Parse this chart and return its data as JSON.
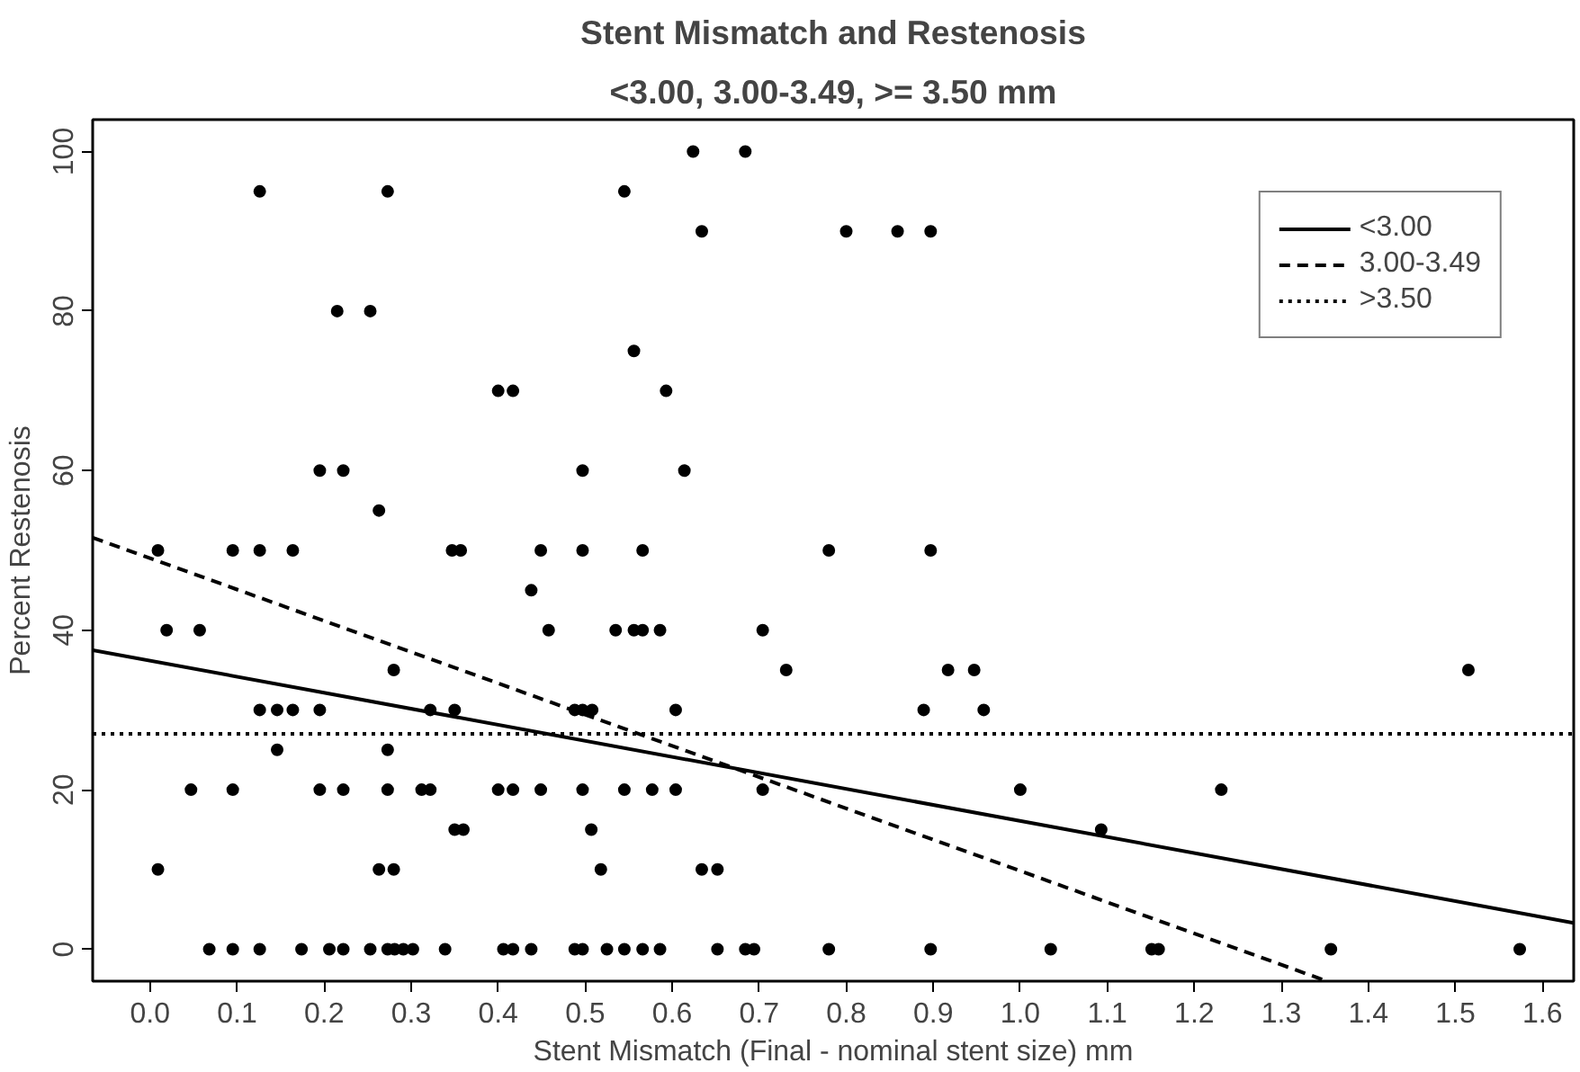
{
  "chart_data": {
    "type": "scatter",
    "title": "Stent Mismatch and Restenosis",
    "subtitle": "<3.00, 3.00-3.49, >= 3.50 mm",
    "xlabel": "Stent Mismatch (Final - nominal stent size) mm",
    "ylabel": "Percent Restenosis",
    "xlim": [
      -0.066,
      1.636
    ],
    "ylim": [
      -4,
      104
    ],
    "xticks": [
      {
        "value": 0,
        "label": "0.0"
      },
      {
        "value": 0.1,
        "label": "0.1"
      },
      {
        "value": 0.2,
        "label": "0.2"
      },
      {
        "value": 0.3,
        "label": "0.3"
      },
      {
        "value": 0.4,
        "label": "0.4"
      },
      {
        "value": 0.5,
        "label": "0.5"
      },
      {
        "value": 0.6,
        "label": "0.6"
      },
      {
        "value": 0.7,
        "label": "0.7"
      },
      {
        "value": 0.8,
        "label": "0.8"
      },
      {
        "value": 0.9,
        "label": "0.9"
      },
      {
        "value": 1,
        "label": "1.0"
      },
      {
        "value": 1.1,
        "label": "1.1"
      },
      {
        "value": 1.2,
        "label": "1.2"
      },
      {
        "value": 1.3,
        "label": "1.3"
      },
      {
        "value": 1.4,
        "label": "1.4"
      },
      {
        "value": 1.5,
        "label": "1.5"
      },
      {
        "value": 1.6,
        "label": "1.6"
      }
    ],
    "yticks": [
      0,
      20,
      40,
      60,
      80,
      100
    ],
    "grid": false,
    "legend": "top right",
    "series": [
      {
        "marker": "circle",
        "color": "#000000",
        "x": [
          0.126,
          0.273,
          0.215,
          0.253,
          0.4,
          0.417,
          0.195,
          0.222,
          0.497,
          0.263,
          0.009,
          0.095,
          0.126,
          0.164,
          0.347,
          0.357,
          0.449,
          0.497,
          0.438,
          0.019,
          0.057,
          0.458,
          0.28,
          0.126,
          0.146,
          0.164,
          0.195,
          0.322,
          0.35,
          0.488,
          0.497,
          0.508,
          0.146,
          0.273,
          0.047,
          0.095,
          0.195,
          0.222,
          0.273,
          0.312,
          0.322,
          0.4,
          0.417,
          0.449,
          0.497,
          0.35,
          0.36,
          0.009,
          0.263,
          0.28,
          0.068,
          0.095,
          0.126,
          0.174,
          0.206,
          0.222,
          0.253,
          0.273,
          0.281,
          0.291,
          0.302,
          0.339,
          0.406,
          0.417,
          0.438,
          0.488,
          0.497,
          0.624,
          0.684,
          0.545,
          0.634,
          0.8,
          0.859,
          0.897,
          0.556,
          0.593,
          0.614,
          0.566,
          0.78,
          0.897,
          0.535,
          0.556,
          0.566,
          0.586,
          0.704,
          0.731,
          0.917,
          0.947,
          0.604,
          0.889,
          0.958,
          0.545,
          0.577,
          0.604,
          0.704,
          1.0,
          0.507,
          0.518,
          0.634,
          0.652,
          0.525,
          0.545,
          0.566,
          0.586,
          0.652,
          0.684,
          0.694,
          0.78,
          0.897,
          1.035,
          1.515,
          1.231,
          1.093,
          1.151,
          1.159,
          1.357,
          1.574
        ],
        "values": [
          95,
          95,
          80,
          80,
          70,
          70,
          60,
          60,
          60,
          55,
          50,
          50,
          50,
          50,
          50,
          50,
          50,
          50,
          45,
          40,
          40,
          40,
          35,
          30,
          30,
          30,
          30,
          30,
          30,
          30,
          30,
          30,
          25,
          25,
          20,
          20,
          20,
          20,
          20,
          20,
          20,
          20,
          20,
          20,
          20,
          15,
          15,
          10,
          10,
          10,
          0,
          0,
          0,
          0,
          0,
          0,
          0,
          0,
          0,
          0,
          0,
          0,
          0,
          0,
          0,
          0,
          0,
          100,
          100,
          95,
          90,
          90,
          90,
          90,
          75,
          70,
          60,
          50,
          50,
          50,
          40,
          40,
          40,
          40,
          40,
          35,
          35,
          35,
          30,
          30,
          30,
          20,
          20,
          20,
          20,
          20,
          15,
          10,
          10,
          10,
          0,
          0,
          0,
          0,
          0,
          0,
          0,
          0,
          0,
          0,
          35,
          20,
          15,
          0,
          0,
          0,
          0
        ]
      },
      {
        "type": "line",
        "name": "<3.00",
        "color": "#000000",
        "line_style": "solid",
        "x": [
          -0.066,
          1.636
        ],
        "values": [
          37.5,
          3.3
        ]
      },
      {
        "type": "line",
        "name": "3.00-3.49",
        "color": "#000000",
        "line_style": "dashed",
        "x": [
          -0.066,
          1.35
        ],
        "values": [
          51.6,
          -3.9
        ]
      },
      {
        "type": "line",
        "name": ">3.50",
        "color": "#000000",
        "line_style": "dotted",
        "x": [
          -0.066,
          1.636
        ],
        "values": [
          27,
          27
        ]
      }
    ]
  }
}
